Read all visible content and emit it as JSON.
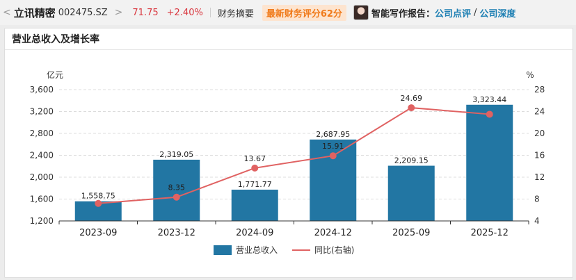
{
  "header": {
    "back_glyph": "<",
    "stock_name": "立讯精密",
    "stock_code": "002475.SZ",
    "forward_glyph": ">",
    "price": "71.75",
    "change": "+2.40%",
    "tab": "财务摘要",
    "score_badge": "最新财务评分62分",
    "ai_label": "智能写作报告：",
    "link1": "公司点评",
    "slash": "/",
    "link2": "公司深度"
  },
  "card": {
    "title": "营业总收入及增长率"
  },
  "chart_data": {
    "type": "bar",
    "categories": [
      "2023-09",
      "2023-12",
      "2024-09",
      "2024-12",
      "2025-09",
      "2025-12"
    ],
    "series": [
      {
        "name": "营业总收入",
        "type": "bar",
        "axis": "left",
        "values": [
          1558.75,
          2319.05,
          1771.77,
          2687.95,
          2209.15,
          3323.44
        ],
        "labels": [
          "1,558.75",
          "2,319.05",
          "1,771.77",
          "2,687.95",
          "2,209.15",
          "3,323.44"
        ]
      },
      {
        "name": "同比(右轴)",
        "type": "line",
        "axis": "right",
        "values": [
          7.2,
          8.35,
          13.67,
          15.91,
          24.69,
          23.5
        ],
        "labels": [
          "",
          "8.35",
          "13.67",
          "15.91",
          "24.69",
          ""
        ]
      }
    ],
    "ylabel": "亿元",
    "ylabel_right": "%",
    "ylim": [
      1200,
      3600
    ],
    "ylim_right": [
      4,
      28
    ],
    "yticks": [
      "1,200",
      "1,600",
      "2,000",
      "2,400",
      "2,800",
      "3,200",
      "3,600"
    ],
    "yticks_right": [
      "4",
      "8",
      "12",
      "16",
      "20",
      "24",
      "28"
    ],
    "grid": true,
    "legend_position": "bottom-center",
    "colors": {
      "bar": "#2276a3",
      "line": "#e06262"
    }
  }
}
